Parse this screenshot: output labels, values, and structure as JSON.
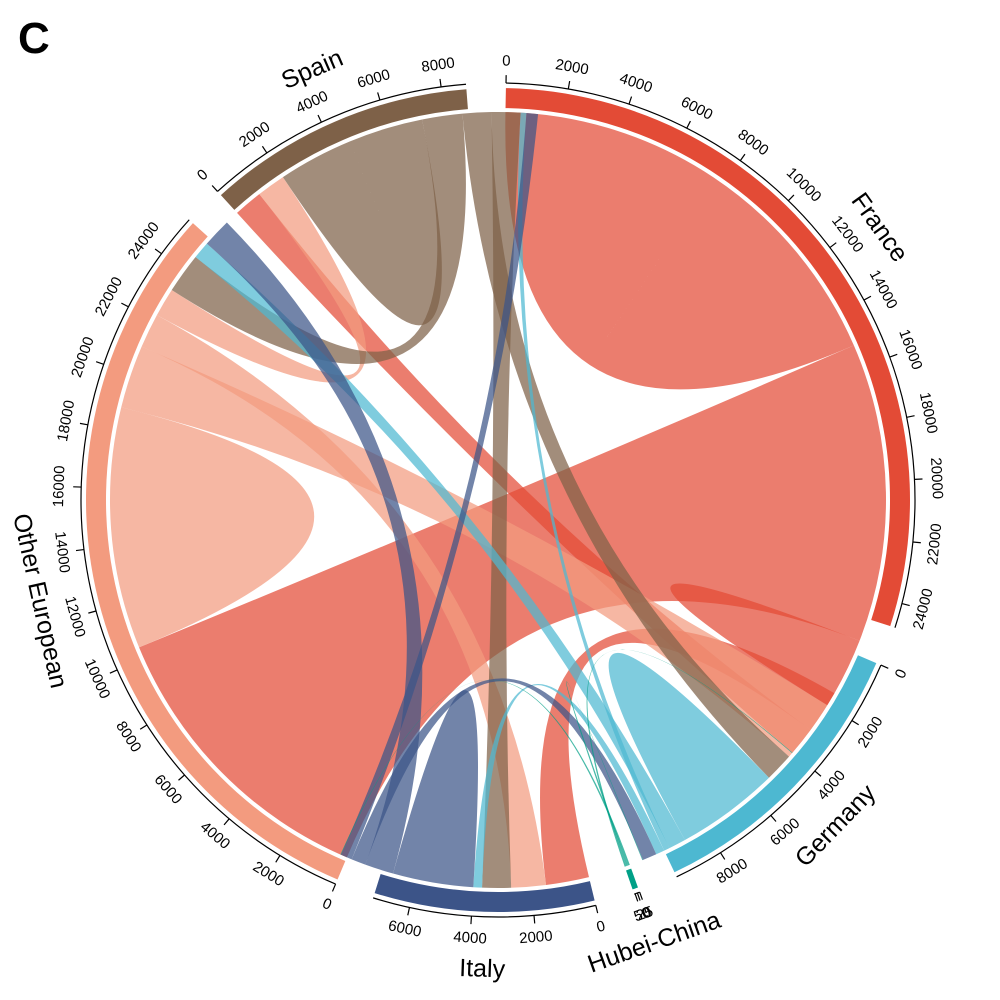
{
  "panel_label": "C",
  "chart_data": {
    "type": "chord",
    "title": "",
    "sectors": [
      {
        "name": "France",
        "total": 24800,
        "color": "#e34b36",
        "ticks": [
          0,
          2000,
          4000,
          6000,
          8000,
          10000,
          12000,
          14000,
          16000,
          18000,
          20000,
          22000,
          24000
        ]
      },
      {
        "name": "Germany",
        "total": 9600,
        "color": "#4db8d1",
        "ticks": [
          0,
          2000,
          4000,
          6000,
          8000
        ]
      },
      {
        "name": "Hubei-China",
        "total": 60,
        "color": "#00a087",
        "ticks": [
          0,
          25,
          50
        ]
      },
      {
        "name": "Italy",
        "total": 7200,
        "color": "#3c5488",
        "ticks": [
          0,
          2000,
          4000,
          6000
        ]
      },
      {
        "name": "Other European",
        "total": 25400,
        "color": "#f39b7f",
        "ticks": [
          0,
          2000,
          4000,
          6000,
          8000,
          10000,
          12000,
          14000,
          16000,
          18000,
          20000,
          22000,
          24000
        ]
      },
      {
        "name": "Spain",
        "total": 8800,
        "color": "#7e6148",
        "ticks": [
          0,
          2000,
          4000,
          6000,
          8000
        ]
      }
    ],
    "flows": [
      {
        "from": "France",
        "to": "France",
        "value": 7600
      },
      {
        "from": "France",
        "to": "Other European",
        "value": 10400
      },
      {
        "from": "France",
        "to": "Germany",
        "value": 2000
      },
      {
        "from": "France",
        "to": "Italy",
        "value": 1500
      },
      {
        "from": "France",
        "to": "Spain",
        "value": 1000
      },
      {
        "from": "Other European",
        "to": "Other European",
        "value": 4200
      },
      {
        "from": "Other European",
        "to": "Germany",
        "value": 2200
      },
      {
        "from": "Other European",
        "to": "Italy",
        "value": 1200
      },
      {
        "from": "Other European",
        "to": "Spain",
        "value": 1000
      },
      {
        "from": "Spain",
        "to": "Spain",
        "value": 2600
      },
      {
        "from": "Spain",
        "to": "Other European",
        "value": 1400
      },
      {
        "from": "Spain",
        "to": "Germany",
        "value": 1000
      },
      {
        "from": "Spain",
        "to": "Italy",
        "value": 1000
      },
      {
        "from": "Germany",
        "to": "Germany",
        "value": 1800
      },
      {
        "from": "Germany",
        "to": "Other European",
        "value": 600
      },
      {
        "from": "Germany",
        "to": "Spain",
        "value": 200
      },
      {
        "from": "Germany",
        "to": "Italy",
        "value": 300
      },
      {
        "from": "Italy",
        "to": "Italy",
        "value": 1400
      },
      {
        "from": "Italy",
        "to": "Other European",
        "value": 1000
      },
      {
        "from": "Italy",
        "to": "Germany",
        "value": 500
      },
      {
        "from": "Italy",
        "to": "Spain",
        "value": 400
      },
      {
        "from": "Hubei-China",
        "to": "Italy",
        "value": 20
      },
      {
        "from": "Hubei-China",
        "to": "Germany",
        "value": 20
      },
      {
        "from": "Hubei-China",
        "to": "France",
        "value": 20
      }
    ]
  }
}
